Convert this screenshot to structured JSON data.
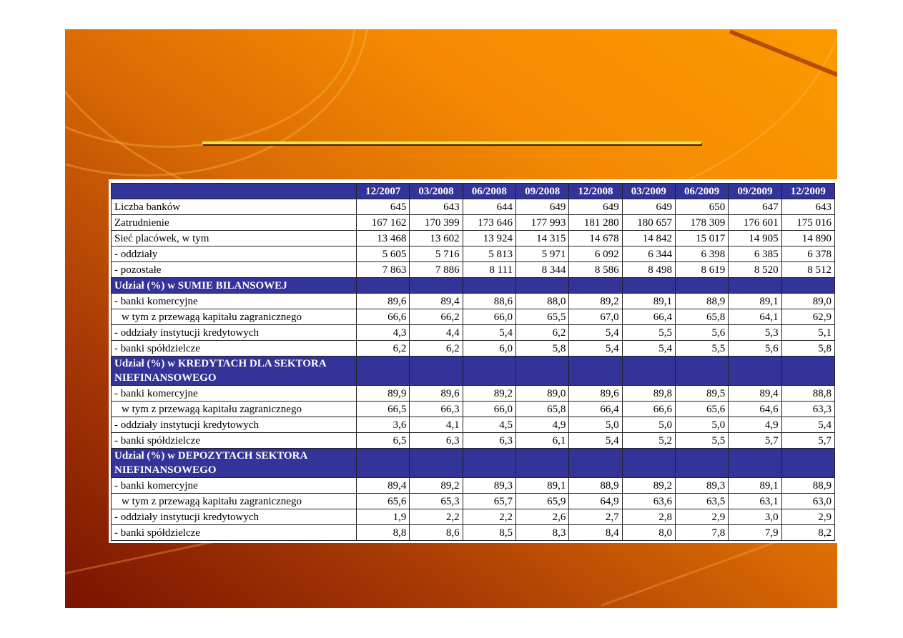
{
  "slide": {
    "accent_line_color": "#ffe14a",
    "header_color": "#333399"
  },
  "table": {
    "columns": [
      "12/2007",
      "03/2008",
      "06/2008",
      "09/2008",
      "12/2008",
      "03/2009",
      "06/2009",
      "09/2009",
      "12/2009"
    ],
    "rows": [
      {
        "label": "Liczba banków",
        "values": [
          "645",
          "643",
          "644",
          "649",
          "649",
          "649",
          "650",
          "647",
          "643"
        ]
      },
      {
        "label": "Zatrudnienie",
        "values": [
          "167 162",
          "170 399",
          "173 646",
          "177 993",
          "181 280",
          "180 657",
          "178 309",
          "176 601",
          "175 016"
        ]
      },
      {
        "label": "Sieć placówek, w tym",
        "values": [
          "13 468",
          "13 602",
          "13 924",
          "14 315",
          "14 678",
          "14 842",
          "15 017",
          "14 905",
          "14 890"
        ]
      },
      {
        "label": " - oddziały",
        "values": [
          "5 605",
          "5 716",
          "5 813",
          "5 971",
          "6 092",
          "6 344",
          "6 398",
          "6 385",
          "6 378"
        ]
      },
      {
        "label": " - pozostałe",
        "values": [
          "7 863",
          "7 886",
          "8 111",
          "8 344",
          "8 586",
          "8 498",
          "8 619",
          "8 520",
          "8 512"
        ]
      },
      {
        "section": "Udział  (%) w SUMIE BILANSOWEJ"
      },
      {
        "label": " - banki komercyjne",
        "values": [
          "89,6",
          "89,4",
          "88,6",
          "88,0",
          "89,2",
          "89,1",
          "88,9",
          "89,1",
          "89,0"
        ]
      },
      {
        "label": "w tym z przewagą kapitału zagranicznego",
        "indent": true,
        "values": [
          "66,6",
          "66,2",
          "66,0",
          "65,5",
          "67,0",
          "66,4",
          "65,8",
          "64,1",
          "62,9"
        ]
      },
      {
        "label": " - oddziały instytucji kredytowych",
        "values": [
          "4,3",
          "4,4",
          "5,4",
          "6,2",
          "5,4",
          "5,5",
          "5,6",
          "5,3",
          "5,1"
        ]
      },
      {
        "label": " - banki spółdzielcze",
        "values": [
          "6,2",
          "6,2",
          "6,0",
          "5,8",
          "5,4",
          "5,4",
          "5,5",
          "5,6",
          "5,8"
        ]
      },
      {
        "section": "Udział (%) w KREDYTACH DLA SEKTORA NIEFINANSOWEGO"
      },
      {
        "label": " - banki komercyjne",
        "values": [
          "89,9",
          "89,6",
          "89,2",
          "89,0",
          "89,6",
          "89,8",
          "89,5",
          "89,4",
          "88,8"
        ]
      },
      {
        "label": "w tym z przewagą kapitału zagranicznego",
        "indent": true,
        "values": [
          "66,5",
          "66,3",
          "66,0",
          "65,8",
          "66,4",
          "66,6",
          "65,6",
          "64,6",
          "63,3"
        ]
      },
      {
        "label": " - oddziały instytucji kredytowych",
        "values": [
          "3,6",
          "4,1",
          "4,5",
          "4,9",
          "5,0",
          "5,0",
          "5,0",
          "4,9",
          "5,4"
        ]
      },
      {
        "label": " - banki spółdzielcze",
        "values": [
          "6,5",
          "6,3",
          "6,3",
          "6,1",
          "5,4",
          "5,2",
          "5,5",
          "5,7",
          "5,7"
        ]
      },
      {
        "section": "Udział (%) w DEPOZYTACH SEKTORA NIEFINANSOWEGO"
      },
      {
        "label": " - banki komercyjne",
        "values": [
          "89,4",
          "89,2",
          "89,3",
          "89,1",
          "88,9",
          "89,2",
          "89,3",
          "89,1",
          "88,9"
        ]
      },
      {
        "label": "w tym z przewagą kapitału zagranicznego",
        "indent": true,
        "values": [
          "65,6",
          "65,3",
          "65,7",
          "65,9",
          "64,9",
          "63,6",
          "63,5",
          "63,1",
          "63,0"
        ]
      },
      {
        "label": " - oddziały instytucji kredytowych",
        "values": [
          "1,9",
          "2,2",
          "2,2",
          "2,6",
          "2,7",
          "2,8",
          "2,9",
          "3,0",
          "2,9"
        ]
      },
      {
        "label": " - banki spółdzielcze",
        "values": [
          "8,8",
          "8,6",
          "8,5",
          "8,3",
          "8,4",
          "8,0",
          "7,8",
          "7,9",
          "8,2"
        ]
      }
    ]
  }
}
